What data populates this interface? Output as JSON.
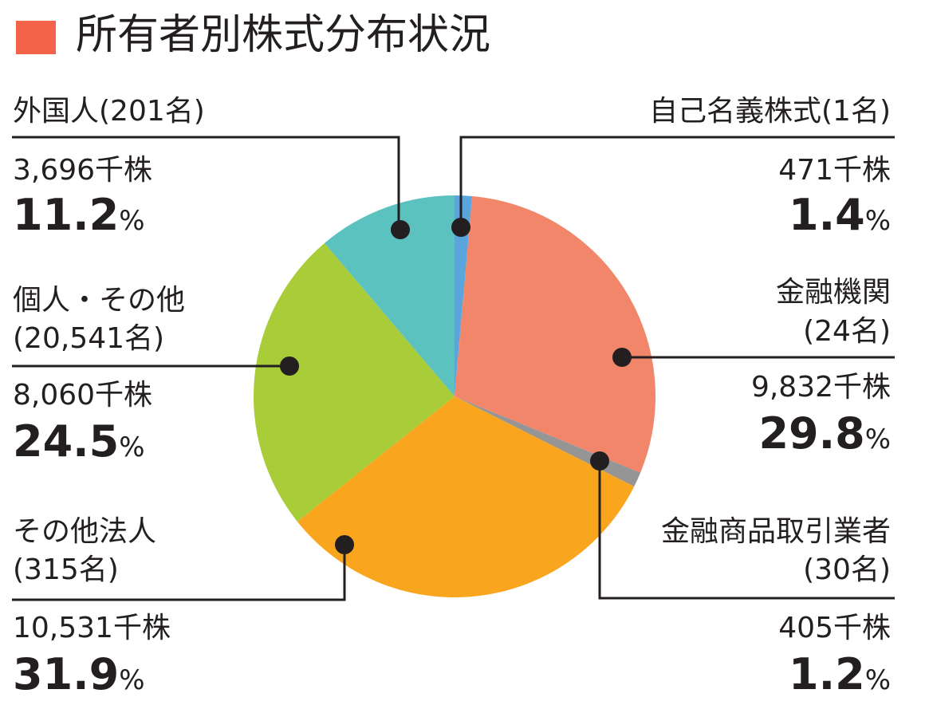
{
  "title": "所有者別株式分布状況",
  "colors": {
    "title_marker": "#f26349"
  },
  "chart_data": {
    "type": "pie",
    "title": "所有者別株式分布状況",
    "start": "12 o'clock, clockwise",
    "slices": [
      {
        "name": "自己名義株式",
        "holders": "(1名)",
        "shares": "471千株",
        "value": 1.4,
        "pct": "1.4",
        "unit": "%",
        "color": "#5aa6dc"
      },
      {
        "name": "金融機関",
        "holders": "(24名)",
        "shares": "9,832千株",
        "value": 29.8,
        "pct": "29.8",
        "unit": "%",
        "color": "#f2866a"
      },
      {
        "name": "金融商品取引業者",
        "holders": "(30名)",
        "shares": "405千株",
        "value": 1.2,
        "pct": "1.2",
        "unit": "%",
        "color": "#959595"
      },
      {
        "name": "その他法人",
        "holders": "(315名)",
        "shares": "10,531千株",
        "value": 31.9,
        "pct": "31.9",
        "unit": "%",
        "color": "#f9a61e"
      },
      {
        "name": "個人・その他",
        "holders": "(20,541名)",
        "shares": "8,060千株",
        "value": 24.5,
        "pct": "24.5",
        "unit": "%",
        "color": "#a8cd38"
      },
      {
        "name": "外国人",
        "holders": "(201名)",
        "shares": "3,696千株",
        "value": 11.2,
        "pct": "11.2",
        "unit": "%",
        "color": "#5bc2c0"
      }
    ]
  }
}
